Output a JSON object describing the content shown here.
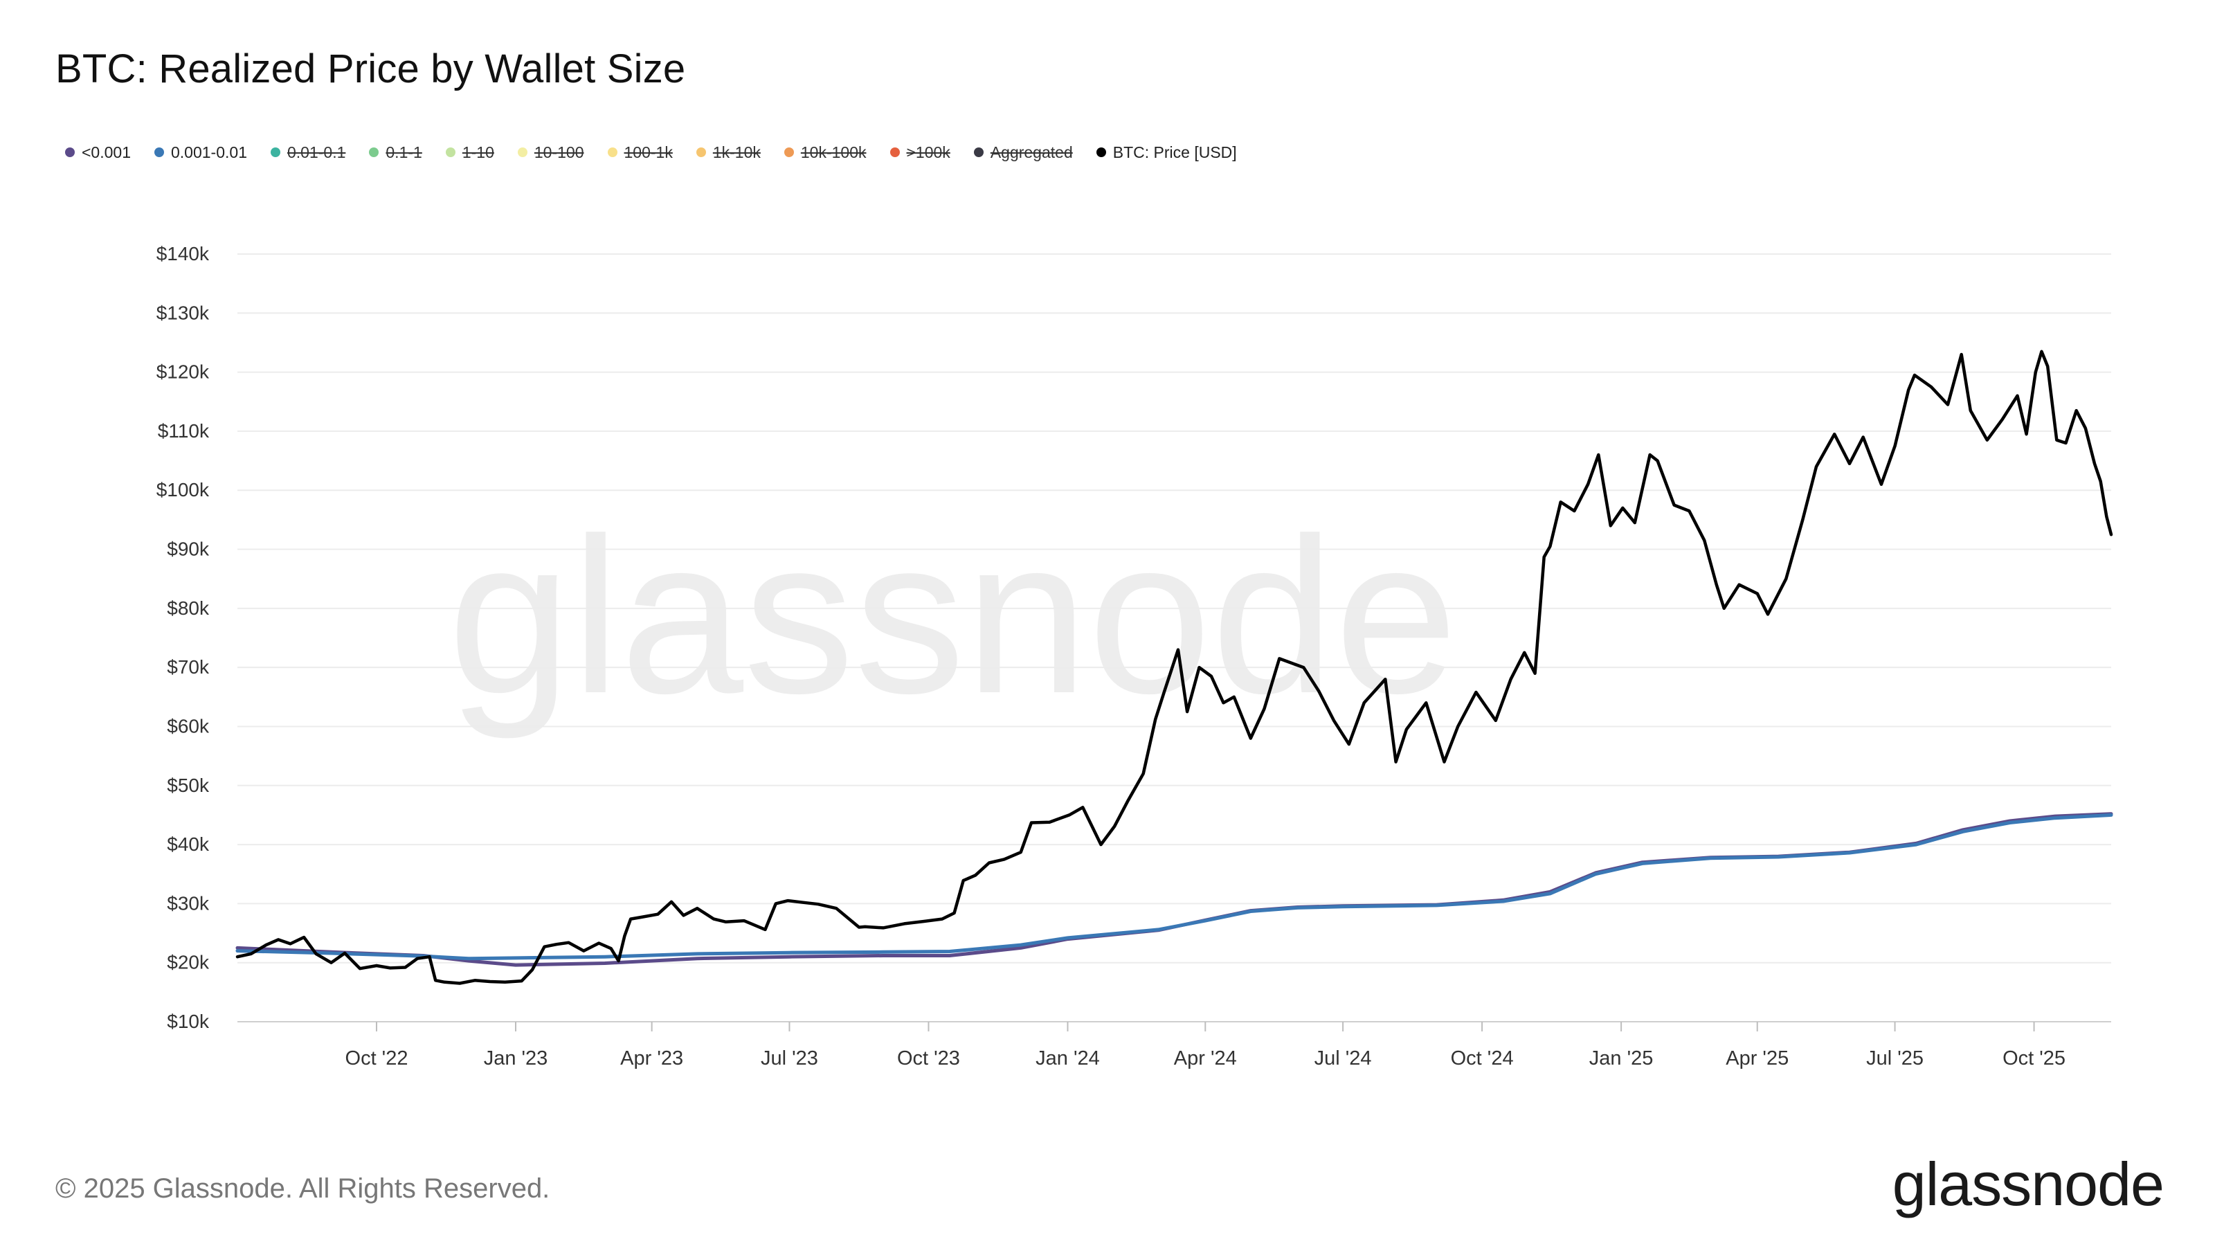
{
  "title": "BTC: Realized Price by Wallet Size",
  "legend": [
    {
      "label": "<0.001",
      "color": "#5b4b8a",
      "active": true
    },
    {
      "label": "0.001-0.01",
      "color": "#3a78b5",
      "active": true
    },
    {
      "label": "0.01-0.1",
      "color": "#3cb3a0",
      "active": false
    },
    {
      "label": "0.1-1",
      "color": "#7ccb8e",
      "active": false
    },
    {
      "label": "1-10",
      "color": "#c3e3a0",
      "active": false
    },
    {
      "label": "10-100",
      "color": "#f3eea3",
      "active": false
    },
    {
      "label": "100-1k",
      "color": "#f8e08a",
      "active": false
    },
    {
      "label": "1k-10k",
      "color": "#f6c56f",
      "active": false
    },
    {
      "label": "10k-100k",
      "color": "#ee9a55",
      "active": false
    },
    {
      "label": ">100k",
      "color": "#e5603e",
      "active": false
    },
    {
      "label": "Aggregated",
      "color": "#3a3a45",
      "active": false
    },
    {
      "label": "BTC: Price [USD]",
      "color": "#000000",
      "active": true
    }
  ],
  "watermark": "glassnode",
  "footer": {
    "copyright": "© 2025 Glassnode. All Rights Reserved.",
    "brand": "glassnode"
  },
  "chart_data": {
    "type": "line",
    "title": "BTC: Realized Price by Wallet Size",
    "xlabel": "",
    "ylabel": "",
    "x_range": [
      "2022-07-01",
      "2025-11-21"
    ],
    "ylim": [
      10000,
      140000
    ],
    "y_ticks": [
      10000,
      20000,
      30000,
      40000,
      50000,
      60000,
      70000,
      80000,
      90000,
      100000,
      110000,
      120000,
      130000,
      140000
    ],
    "y_tick_labels": [
      "$10k",
      "$20k",
      "$30k",
      "$40k",
      "$50k",
      "$60k",
      "$70k",
      "$80k",
      "$90k",
      "$100k",
      "$110k",
      "$120k",
      "$130k",
      "$140k"
    ],
    "x_ticks": [
      "2022-10-01",
      "2023-01-01",
      "2023-04-01",
      "2023-07-01",
      "2023-10-01",
      "2024-01-01",
      "2024-04-01",
      "2024-07-01",
      "2024-10-01",
      "2025-01-01",
      "2025-04-01",
      "2025-07-01",
      "2025-10-01"
    ],
    "x_tick_labels": [
      "Oct '22",
      "Jan '23",
      "Apr '23",
      "Jul '23",
      "Oct '23",
      "Jan '24",
      "Apr '24",
      "Jul '24",
      "Oct '24",
      "Jan '25",
      "Apr '25",
      "Jul '25",
      "Oct '25"
    ],
    "grid": true,
    "legend_position": "top-left",
    "series": [
      {
        "name": "<0.001",
        "color": "#5b4b8a",
        "x": [
          "2022-07-01",
          "2022-09-01",
          "2022-11-01",
          "2022-12-01",
          "2023-01-01",
          "2023-03-01",
          "2023-05-01",
          "2023-07-01",
          "2023-09-01",
          "2023-10-15",
          "2023-12-01",
          "2024-01-01",
          "2024-03-01",
          "2024-04-01",
          "2024-05-01",
          "2024-06-01",
          "2024-07-01",
          "2024-09-01",
          "2024-10-15",
          "2024-11-15",
          "2024-12-15",
          "2025-01-15",
          "2025-03-01",
          "2025-04-15",
          "2025-06-01",
          "2025-07-15",
          "2025-08-15",
          "2025-09-15",
          "2025-10-15",
          "2025-11-21"
        ],
        "y": [
          22500,
          21800,
          21200,
          20300,
          19600,
          19900,
          20700,
          21000,
          21200,
          21200,
          22500,
          24000,
          25500,
          27200,
          28800,
          29400,
          29600,
          29800,
          30600,
          32000,
          35200,
          37000,
          37800,
          38000,
          38700,
          40200,
          42500,
          44000,
          44800,
          45200
        ]
      },
      {
        "name": "0.001-0.01",
        "color": "#3a78b5",
        "x": [
          "2022-07-01",
          "2022-09-01",
          "2022-11-01",
          "2022-12-01",
          "2023-01-01",
          "2023-03-01",
          "2023-05-01",
          "2023-07-01",
          "2023-09-01",
          "2023-10-15",
          "2023-12-01",
          "2024-01-01",
          "2024-03-01",
          "2024-04-01",
          "2024-05-01",
          "2024-06-01",
          "2024-07-01",
          "2024-09-01",
          "2024-10-15",
          "2024-11-15",
          "2024-12-15",
          "2025-01-15",
          "2025-03-01",
          "2025-04-15",
          "2025-06-01",
          "2025-07-15",
          "2025-08-15",
          "2025-09-15",
          "2025-10-15",
          "2025-11-21"
        ],
        "y": [
          22000,
          21600,
          21100,
          20700,
          20800,
          21000,
          21500,
          21700,
          21800,
          21900,
          23000,
          24200,
          25600,
          27100,
          28700,
          29300,
          29500,
          29700,
          30400,
          31700,
          35000,
          36800,
          37700,
          37900,
          38600,
          40000,
          42200,
          43700,
          44500,
          45000
        ]
      },
      {
        "name": "BTC: Price [USD]",
        "color": "#000000",
        "x": [
          "2022-07-01",
          "2022-07-10",
          "2022-07-20",
          "2022-07-28",
          "2022-08-05",
          "2022-08-14",
          "2022-08-22",
          "2022-09-01",
          "2022-09-10",
          "2022-09-20",
          "2022-10-01",
          "2022-10-10",
          "2022-10-20",
          "2022-10-28",
          "2022-11-05",
          "2022-11-09",
          "2022-11-15",
          "2022-11-25",
          "2022-12-05",
          "2022-12-15",
          "2022-12-25",
          "2023-01-05",
          "2023-01-12",
          "2023-01-20",
          "2023-01-28",
          "2023-02-05",
          "2023-02-15",
          "2023-02-25",
          "2023-03-05",
          "2023-03-10",
          "2023-03-14",
          "2023-03-18",
          "2023-03-25",
          "2023-04-05",
          "2023-04-14",
          "2023-04-22",
          "2023-05-01",
          "2023-05-12",
          "2023-05-20",
          "2023-06-01",
          "2023-06-15",
          "2023-06-22",
          "2023-06-30",
          "2023-07-10",
          "2023-07-20",
          "2023-08-01",
          "2023-08-16",
          "2023-08-20",
          "2023-09-01",
          "2023-09-15",
          "2023-09-28",
          "2023-10-10",
          "2023-10-18",
          "2023-10-24",
          "2023-11-01",
          "2023-11-10",
          "2023-11-20",
          "2023-12-01",
          "2023-12-08",
          "2023-12-20",
          "2024-01-02",
          "2024-01-11",
          "2024-01-23",
          "2024-02-01",
          "2024-02-10",
          "2024-02-20",
          "2024-02-28",
          "2024-03-05",
          "2024-03-14",
          "2024-03-20",
          "2024-03-28",
          "2024-04-05",
          "2024-04-13",
          "2024-04-20",
          "2024-05-01",
          "2024-05-10",
          "2024-05-20",
          "2024-06-05",
          "2024-06-15",
          "2024-06-25",
          "2024-07-05",
          "2024-07-15",
          "2024-07-29",
          "2024-08-05",
          "2024-08-12",
          "2024-08-25",
          "2024-09-06",
          "2024-09-15",
          "2024-09-27",
          "2024-10-10",
          "2024-10-20",
          "2024-10-29",
          "2024-11-05",
          "2024-11-11",
          "2024-11-15",
          "2024-11-22",
          "2024-12-01",
          "2024-12-10",
          "2024-12-17",
          "2024-12-25",
          "2025-01-02",
          "2025-01-10",
          "2025-01-20",
          "2025-01-25",
          "2025-02-05",
          "2025-02-15",
          "2025-02-25",
          "2025-03-05",
          "2025-03-10",
          "2025-03-20",
          "2025-04-01",
          "2025-04-08",
          "2025-04-20",
          "2025-05-01",
          "2025-05-10",
          "2025-05-22",
          "2025-06-01",
          "2025-06-10",
          "2025-06-22",
          "2025-07-01",
          "2025-07-10",
          "2025-07-14",
          "2025-07-25",
          "2025-08-05",
          "2025-08-14",
          "2025-08-20",
          "2025-08-31",
          "2025-09-10",
          "2025-09-20",
          "2025-09-26",
          "2025-10-02",
          "2025-10-06",
          "2025-10-10",
          "2025-10-16",
          "2025-10-22",
          "2025-10-29",
          "2025-11-04",
          "2025-11-10",
          "2025-11-14",
          "2025-11-18",
          "2025-11-21"
        ],
        "y": [
          21000,
          21500,
          23000,
          23900,
          23200,
          24300,
          21500,
          20000,
          21600,
          19000,
          19500,
          19100,
          19200,
          20700,
          21000,
          17000,
          16700,
          16500,
          17000,
          16800,
          16700,
          16900,
          18800,
          22700,
          23100,
          23400,
          22000,
          23300,
          22400,
          20300,
          24500,
          27400,
          27700,
          28200,
          30300,
          28000,
          29200,
          27400,
          26900,
          27100,
          25600,
          30000,
          30500,
          30200,
          29900,
          29200,
          26000,
          26100,
          25900,
          26600,
          27000,
          27400,
          28400,
          33900,
          34800,
          36900,
          37500,
          38700,
          43700,
          43800,
          45000,
          46300,
          40000,
          43100,
          47500,
          52000,
          61200,
          66000,
          73000,
          62500,
          70000,
          68500,
          64000,
          65000,
          58000,
          63000,
          71500,
          70000,
          66000,
          61000,
          57000,
          64000,
          68000,
          54000,
          59500,
          64000,
          54000,
          60000,
          65800,
          61000,
          68000,
          72500,
          69000,
          88700,
          90500,
          98000,
          96500,
          101000,
          106000,
          94000,
          97000,
          94500,
          106000,
          105000,
          97500,
          96500,
          91500,
          84000,
          80000,
          84000,
          82500,
          79000,
          85000,
          95000,
          104000,
          109500,
          104500,
          109000,
          101000,
          107500,
          117000,
          119500,
          117500,
          114500,
          123000,
          113500,
          108500,
          112000,
          116000,
          109500,
          120000,
          123500,
          121000,
          108500,
          108000,
          113500,
          110500,
          104500,
          101500,
          95500,
          92500
        ]
      }
    ]
  }
}
